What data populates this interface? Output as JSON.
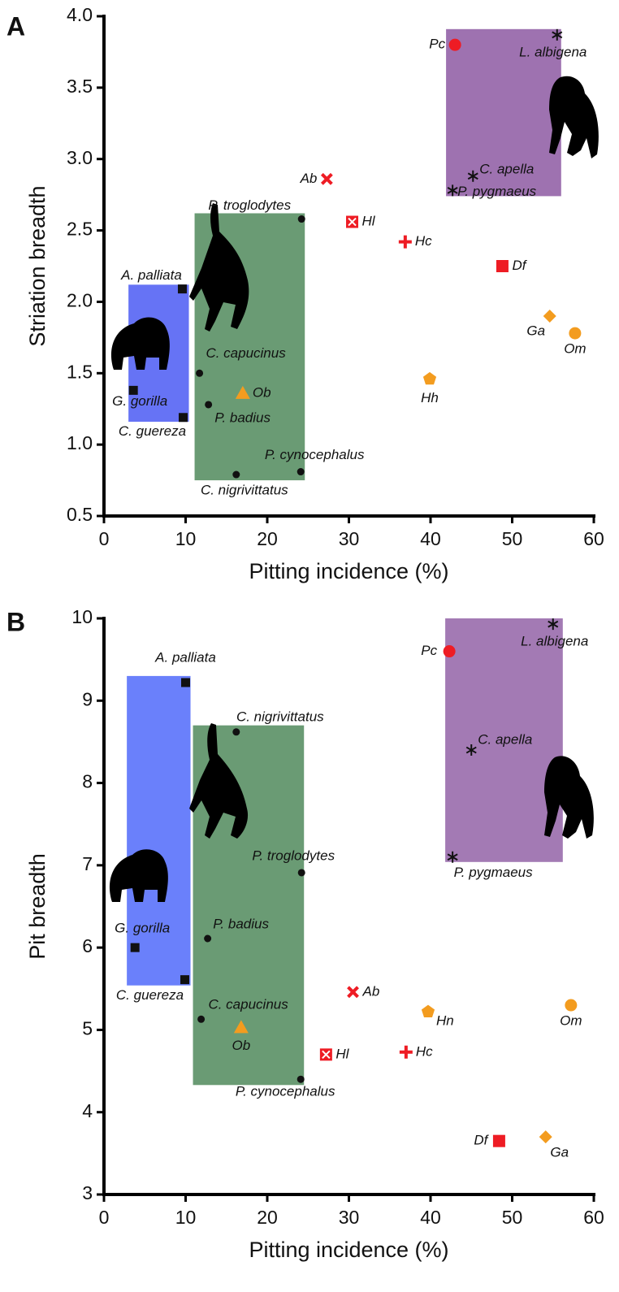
{
  "chart_data": [
    {
      "type": "scatter",
      "panel": "A",
      "x_label": "Pitting incidence (%)",
      "y_label": "Striation breadth",
      "xlim": [
        0,
        60
      ],
      "xticks": [
        0,
        10,
        20,
        30,
        40,
        50,
        60
      ],
      "ylim": [
        0.5,
        4.0
      ],
      "yticks": [
        0.5,
        {
          "value": 1,
          "label": "1.0"
        },
        1.5,
        {
          "value": 2,
          "label": "2.0"
        },
        2.5,
        {
          "value": 3,
          "label": "3.0"
        },
        3.5,
        {
          "value": 4,
          "label": "4.0"
        }
      ],
      "regions": [
        {
          "x": [
            3,
            10.4
          ],
          "y": [
            1.16,
            2.12
          ],
          "color": "#6673f5"
        },
        {
          "x": [
            11.1,
            24.6
          ],
          "y": [
            0.75,
            2.62
          ],
          "color": "#6a9b74"
        },
        {
          "x": [
            41.9,
            56.0
          ],
          "y": [
            2.74,
            3.91
          ],
          "color": "#9e72b0"
        }
      ],
      "points": [
        {
          "label": "Pc",
          "x": 43,
          "y": 3.8,
          "marker": "circle",
          "color": "#ee1c24"
        },
        {
          "label": "L. albigena",
          "x": 55.5,
          "y": 3.87,
          "marker": "asterisk",
          "color": "#111111"
        },
        {
          "label": "C. apella",
          "x": 45.2,
          "y": 2.88,
          "marker": "asterisk",
          "color": "#111111"
        },
        {
          "label": "P. pygmaeus",
          "x": 42.7,
          "y": 2.78,
          "marker": "asterisk",
          "color": "#111111"
        },
        {
          "label": "Ab",
          "x": 27.3,
          "y": 2.86,
          "marker": "x",
          "color": "#ee1c24"
        },
        {
          "label": "Hl",
          "x": 30.4,
          "y": 2.56,
          "marker": "boxx",
          "color": "#ee1c24"
        },
        {
          "label": "Hc",
          "x": 36.9,
          "y": 2.42,
          "marker": "plus",
          "color": "#ee1c24"
        },
        {
          "label": "Df",
          "x": 48.8,
          "y": 2.25,
          "marker": "square",
          "color": "#ee1c24"
        },
        {
          "label": "Ga",
          "x": 54.6,
          "y": 1.9,
          "marker": "diamond",
          "color": "#f39c1f"
        },
        {
          "label": "Om",
          "x": 57.7,
          "y": 1.78,
          "marker": "circle",
          "color": "#f39c1f"
        },
        {
          "label": "Hh",
          "x": 39.9,
          "y": 1.46,
          "marker": "pentagon",
          "color": "#f39c1f"
        },
        {
          "label": "Ob",
          "x": 17,
          "y": 1.36,
          "marker": "triangle",
          "color": "#f39c1f"
        },
        {
          "label": "P. troglodytes",
          "x": 24.2,
          "y": 2.58,
          "marker": "dot",
          "color": "#111111"
        },
        {
          "label": "A. palliata",
          "x": 9.6,
          "y": 2.09,
          "marker": "smallsquare",
          "color": "#111111"
        },
        {
          "label": "G. gorilla",
          "x": 3.6,
          "y": 1.38,
          "marker": "smallsquare",
          "color": "#111111"
        },
        {
          "label": "C. guereza",
          "x": 9.7,
          "y": 1.19,
          "marker": "smallsquare",
          "color": "#111111"
        },
        {
          "label": "C. capucinus",
          "x": 11.7,
          "y": 1.5,
          "marker": "dot",
          "color": "#111111"
        },
        {
          "label": "P. badius",
          "x": 12.8,
          "y": 1.28,
          "marker": "dot",
          "color": "#111111"
        },
        {
          "label": "P. cynocephalus",
          "x": 24.1,
          "y": 0.81,
          "marker": "dot",
          "color": "#111111"
        },
        {
          "label": "C. nigrivittatus",
          "x": 16.2,
          "y": 0.79,
          "marker": "dot",
          "color": "#111111"
        }
      ]
    },
    {
      "type": "scatter",
      "panel": "B",
      "x_label": "Pitting incidence (%)",
      "y_label": "Pit breadth",
      "xlim": [
        0,
        60
      ],
      "xticks": [
        0,
        10,
        20,
        30,
        40,
        50,
        60
      ],
      "ylim": [
        3,
        10
      ],
      "yticks": [
        3,
        4,
        5,
        6,
        7,
        8,
        9,
        10
      ],
      "regions": [
        {
          "x": [
            2.8,
            10.6
          ],
          "y": [
            5.54,
            9.3
          ],
          "color": "#6a80fb"
        },
        {
          "x": [
            10.9,
            24.5
          ],
          "y": [
            4.33,
            8.7
          ],
          "color": "#6a9b74"
        },
        {
          "x": [
            41.8,
            56.2
          ],
          "y": [
            7.04,
            10.0
          ],
          "color": "#a37ab4"
        }
      ],
      "points": [
        {
          "label": "Pc",
          "x": 42.3,
          "y": 9.6,
          "marker": "circle",
          "color": "#ee1c24"
        },
        {
          "label": "L. albigena",
          "x": 55,
          "y": 9.93,
          "marker": "asterisk",
          "color": "#111111"
        },
        {
          "label": "C. apella",
          "x": 45,
          "y": 8.4,
          "marker": "asterisk",
          "color": "#111111"
        },
        {
          "label": "P. pygmaeus",
          "x": 42.7,
          "y": 7.1,
          "marker": "asterisk",
          "color": "#111111"
        },
        {
          "label": "A. palliata",
          "x": 10,
          "y": 9.22,
          "marker": "smallsquare",
          "color": "#111111"
        },
        {
          "label": "C. nigrivittatus",
          "x": 16.2,
          "y": 8.62,
          "marker": "dot",
          "color": "#111111"
        },
        {
          "label": "P. troglodytes",
          "x": 24.2,
          "y": 6.91,
          "marker": "dot",
          "color": "#111111"
        },
        {
          "label": "P. badius",
          "x": 12.7,
          "y": 6.11,
          "marker": "dot",
          "color": "#111111"
        },
        {
          "label": "G. gorilla",
          "x": 3.8,
          "y": 6.0,
          "marker": "smallsquare",
          "color": "#111111"
        },
        {
          "label": "C. guereza",
          "x": 9.9,
          "y": 5.61,
          "marker": "smallsquare",
          "color": "#111111"
        },
        {
          "label": "C. capucinus",
          "x": 11.9,
          "y": 5.13,
          "marker": "dot",
          "color": "#111111"
        },
        {
          "label": "Ob",
          "x": 16.8,
          "y": 5.03,
          "marker": "triangle",
          "color": "#f39c1f"
        },
        {
          "label": "P. cynocephalus",
          "x": 24.1,
          "y": 4.4,
          "marker": "dot",
          "color": "#111111"
        },
        {
          "label": "Ab",
          "x": 30.5,
          "y": 5.46,
          "marker": "x",
          "color": "#ee1c24"
        },
        {
          "label": "Hn",
          "x": 39.7,
          "y": 5.22,
          "marker": "pentagon",
          "color": "#f39c1f"
        },
        {
          "label": "Om",
          "x": 57.2,
          "y": 5.3,
          "marker": "circle",
          "color": "#f39c1f"
        },
        {
          "label": "Hl",
          "x": 27.2,
          "y": 4.7,
          "marker": "boxx",
          "color": "#ee1c24"
        },
        {
          "label": "Hc",
          "x": 37,
          "y": 4.73,
          "marker": "plus",
          "color": "#ee1c24"
        },
        {
          "label": "Df",
          "x": 48.4,
          "y": 3.65,
          "marker": "square",
          "color": "#ee1c24"
        },
        {
          "label": "Ga",
          "x": 54.1,
          "y": 3.7,
          "marker": "diamond",
          "color": "#f39c1f"
        }
      ]
    }
  ]
}
